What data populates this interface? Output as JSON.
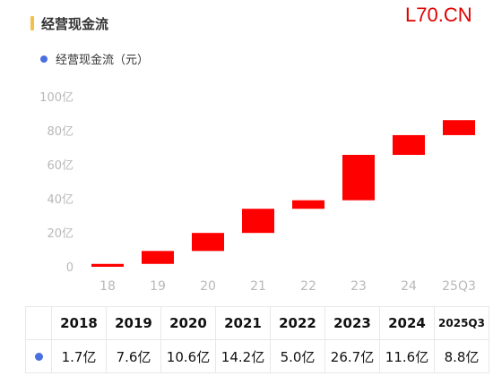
{
  "title": "经营现金流",
  "watermark": "L70.CN",
  "legend": {
    "label": "经营现金流（元）",
    "color": "#4a6fe0"
  },
  "chart_data": {
    "type": "bar",
    "subtype": "waterfall",
    "categories": [
      "18",
      "19",
      "20",
      "21",
      "22",
      "23",
      "24",
      "25Q3"
    ],
    "increments": [
      1.7,
      7.6,
      10.6,
      14.2,
      5.0,
      26.7,
      11.6,
      8.8
    ],
    "cumulative_start": [
      0,
      1.7,
      9.3,
      19.9,
      34.1,
      39.1,
      65.8,
      77.4
    ],
    "cumulative_end": [
      1.7,
      9.3,
      19.9,
      34.1,
      39.1,
      65.8,
      77.4,
      86.2
    ],
    "ylim": [
      0,
      100
    ],
    "yticks": [
      0,
      20,
      40,
      60,
      80,
      100
    ],
    "ytick_labels": [
      "0",
      "20亿",
      "40亿",
      "60亿",
      "80亿",
      "100亿"
    ],
    "bar_color": "#ff0000",
    "grid": false
  },
  "table": {
    "years": [
      "2018",
      "2019",
      "2020",
      "2021",
      "2022",
      "2023",
      "2024",
      "2025Q3"
    ],
    "values": [
      "1.7亿",
      "7.6亿",
      "10.6亿",
      "14.2亿",
      "5.0亿",
      "26.7亿",
      "11.6亿",
      "8.8亿"
    ]
  }
}
